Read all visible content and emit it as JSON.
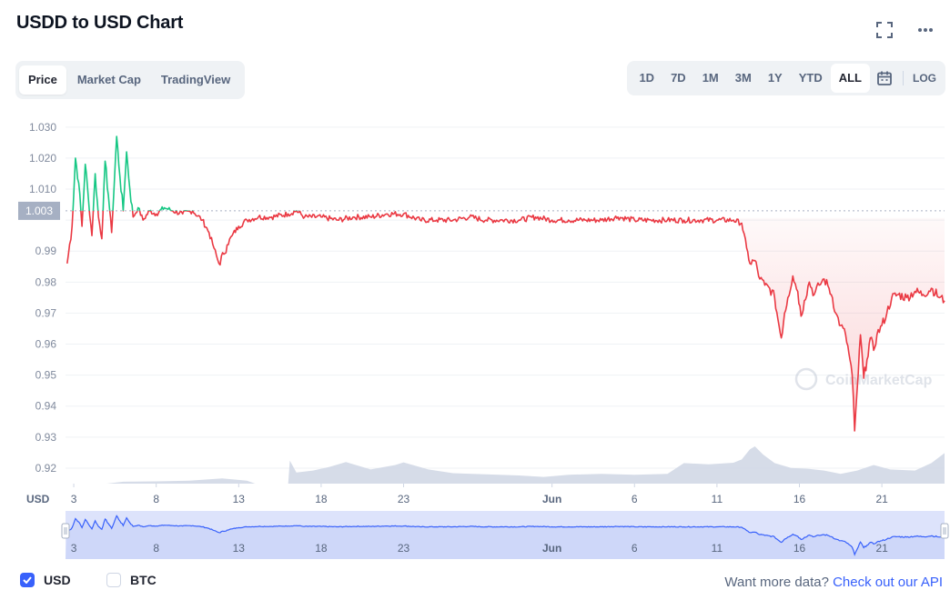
{
  "header": {
    "title": "USDD to USD Chart"
  },
  "tabs": [
    "Price",
    "Market Cap",
    "TradingView"
  ],
  "active_tab": "Price",
  "ranges": [
    "1D",
    "7D",
    "1M",
    "3M",
    "1Y",
    "YTD",
    "ALL"
  ],
  "active_range": "ALL",
  "log_label": "LOG",
  "icons": {
    "fullscreen": "fullscreen-icon",
    "more": "more-options-icon",
    "calendar": "calendar-icon"
  },
  "colors": {
    "up": "#16c784",
    "down": "#ea3943",
    "volume": "#cfd6e4",
    "navigator": "#3861fb",
    "accent": "#3861fb"
  },
  "chart_data": {
    "type": "line",
    "y_axis_unit": "USD",
    "ylim": [
      0.915,
      1.032
    ],
    "y_ticks": [
      0.92,
      0.93,
      0.94,
      0.95,
      0.96,
      0.97,
      0.98,
      0.99,
      1.0,
      1.01,
      1.02,
      1.03
    ],
    "y_tick_labels": [
      "0.92",
      "0.93",
      "0.94",
      "0.95",
      "0.96",
      "0.97",
      "0.98",
      "0.99",
      "",
      "1.010",
      "1.020",
      "1.030"
    ],
    "x_tick_labels": [
      "3",
      "8",
      "13",
      "18",
      "23",
      "Jun",
      "6",
      "11",
      "16",
      "21"
    ],
    "x_tick_days": [
      3,
      8,
      13,
      18,
      23,
      32,
      37,
      42,
      47,
      52
    ],
    "xlim_days": [
      2.5,
      55.8
    ],
    "current_price_label": "1.003",
    "reference_price": 1.003,
    "watermark": "CoinMarketCap",
    "grid": true,
    "series": [
      {
        "unit": "USD",
        "points": [
          [
            2.6,
            0.986
          ],
          [
            2.9,
            0.998
          ],
          [
            3.1,
            1.02
          ],
          [
            3.3,
            1.012
          ],
          [
            3.5,
            0.998
          ],
          [
            3.7,
            1.018
          ],
          [
            3.9,
            1.006
          ],
          [
            4.1,
            0.995
          ],
          [
            4.3,
            1.015
          ],
          [
            4.5,
            1.001
          ],
          [
            4.7,
            0.994
          ],
          [
            4.9,
            1.019
          ],
          [
            5.1,
            1.008
          ],
          [
            5.3,
            0.996
          ],
          [
            5.6,
            1.027
          ],
          [
            5.8,
            1.014
          ],
          [
            6.0,
            1.003
          ],
          [
            6.2,
            1.022
          ],
          [
            6.4,
            1.01
          ],
          [
            6.6,
            1.001
          ],
          [
            6.9,
            1.004
          ],
          [
            7.2,
            1.0
          ],
          [
            7.6,
            1.003
          ],
          [
            8.0,
            1.002
          ],
          [
            8.5,
            1.004
          ],
          [
            9.0,
            1.003
          ],
          [
            9.6,
            1.002
          ],
          [
            10.2,
            1.003
          ],
          [
            10.8,
            1.0
          ],
          [
            11.2,
            0.996
          ],
          [
            11.5,
            0.991
          ],
          [
            11.8,
            0.986
          ],
          [
            12.1,
            0.989
          ],
          [
            12.3,
            0.992
          ],
          [
            12.6,
            0.995
          ],
          [
            13.0,
            0.998
          ],
          [
            13.5,
            1.0
          ],
          [
            14.2,
            1.001
          ],
          [
            15.0,
            1.001
          ],
          [
            16.0,
            1.002
          ],
          [
            16.5,
            1.003
          ],
          [
            17.0,
            1.001
          ],
          [
            18.0,
            1.001
          ],
          [
            19.0,
            1.0
          ],
          [
            20.0,
            1.001
          ],
          [
            21.0,
            1.001
          ],
          [
            22.0,
            1.002
          ],
          [
            23.0,
            1.002
          ],
          [
            24.0,
            1.0
          ],
          [
            25.0,
            1.0
          ],
          [
            26.0,
            1.0
          ],
          [
            27.0,
            1.001
          ],
          [
            28.0,
            1.0
          ],
          [
            29.0,
            1.0
          ],
          [
            30.0,
            1.0
          ],
          [
            31.0,
            1.001
          ],
          [
            32.0,
            1.0
          ],
          [
            33.0,
            1.0
          ],
          [
            34.0,
            1.0
          ],
          [
            35.0,
            1.0
          ],
          [
            36.0,
            1.001
          ],
          [
            37.0,
            1.0
          ],
          [
            38.0,
            1.0
          ],
          [
            39.0,
            1.0
          ],
          [
            40.0,
            1.0
          ],
          [
            41.0,
            1.0
          ],
          [
            42.0,
            1.0
          ],
          [
            43.0,
            1.0
          ],
          [
            43.5,
            0.999
          ],
          [
            43.8,
            0.991
          ],
          [
            44.0,
            0.986
          ],
          [
            44.3,
            0.987
          ],
          [
            44.6,
            0.981
          ],
          [
            44.9,
            0.979
          ],
          [
            45.2,
            0.978
          ],
          [
            45.5,
            0.975
          ],
          [
            45.7,
            0.968
          ],
          [
            45.9,
            0.962
          ],
          [
            46.1,
            0.97
          ],
          [
            46.3,
            0.975
          ],
          [
            46.6,
            0.982
          ],
          [
            46.9,
            0.977
          ],
          [
            47.1,
            0.969
          ],
          [
            47.3,
            0.974
          ],
          [
            47.6,
            0.98
          ],
          [
            47.9,
            0.976
          ],
          [
            48.2,
            0.979
          ],
          [
            48.5,
            0.981
          ],
          [
            48.8,
            0.978
          ],
          [
            49.0,
            0.975
          ],
          [
            49.2,
            0.97
          ],
          [
            49.5,
            0.966
          ],
          [
            49.8,
            0.963
          ],
          [
            50.0,
            0.957
          ],
          [
            50.2,
            0.95
          ],
          [
            50.35,
            0.932
          ],
          [
            50.5,
            0.945
          ],
          [
            50.7,
            0.963
          ],
          [
            50.9,
            0.949
          ],
          [
            51.1,
            0.955
          ],
          [
            51.3,
            0.962
          ],
          [
            51.5,
            0.958
          ],
          [
            51.7,
            0.963
          ],
          [
            52.0,
            0.966
          ],
          [
            52.3,
            0.97
          ],
          [
            52.6,
            0.975
          ],
          [
            53.0,
            0.976
          ],
          [
            53.5,
            0.975
          ],
          [
            54.0,
            0.977
          ],
          [
            54.5,
            0.976
          ],
          [
            55.0,
            0.978
          ],
          [
            55.5,
            0.975
          ],
          [
            55.8,
            0.974
          ]
        ]
      }
    ],
    "volume": [
      [
        2.6,
        0.0
      ],
      [
        5.0,
        0.0
      ],
      [
        6.0,
        0.05
      ],
      [
        8.0,
        0.06
      ],
      [
        10.0,
        0.08
      ],
      [
        11.0,
        0.11
      ],
      [
        12.0,
        0.14
      ],
      [
        13.5,
        0.08
      ],
      [
        14.0,
        0.0
      ],
      [
        16.0,
        0.0
      ],
      [
        16.1,
        0.62
      ],
      [
        16.5,
        0.3
      ],
      [
        17.5,
        0.35
      ],
      [
        18.5,
        0.45
      ],
      [
        19.5,
        0.58
      ],
      [
        21.0,
        0.38
      ],
      [
        22.5,
        0.5
      ],
      [
        23.0,
        0.57
      ],
      [
        24.5,
        0.38
      ],
      [
        26.0,
        0.28
      ],
      [
        28.0,
        0.25
      ],
      [
        30.0,
        0.22
      ],
      [
        31.5,
        0.18
      ],
      [
        33.0,
        0.24
      ],
      [
        35.0,
        0.26
      ],
      [
        37.0,
        0.24
      ],
      [
        39.0,
        0.26
      ],
      [
        40.0,
        0.55
      ],
      [
        41.5,
        0.52
      ],
      [
        43.0,
        0.56
      ],
      [
        43.5,
        0.65
      ],
      [
        44.0,
        0.92
      ],
      [
        44.3,
        1.0
      ],
      [
        44.8,
        0.78
      ],
      [
        45.5,
        0.55
      ],
      [
        46.5,
        0.42
      ],
      [
        47.5,
        0.4
      ],
      [
        48.5,
        0.35
      ],
      [
        49.5,
        0.26
      ],
      [
        50.5,
        0.35
      ],
      [
        51.5,
        0.5
      ],
      [
        52.5,
        0.38
      ],
      [
        54.0,
        0.35
      ],
      [
        55.0,
        0.55
      ],
      [
        55.8,
        0.82
      ]
    ]
  },
  "legend": {
    "usd": "USD",
    "btc": "BTC"
  },
  "footer": {
    "prompt": "Want more data?",
    "link": "Check out our API"
  }
}
